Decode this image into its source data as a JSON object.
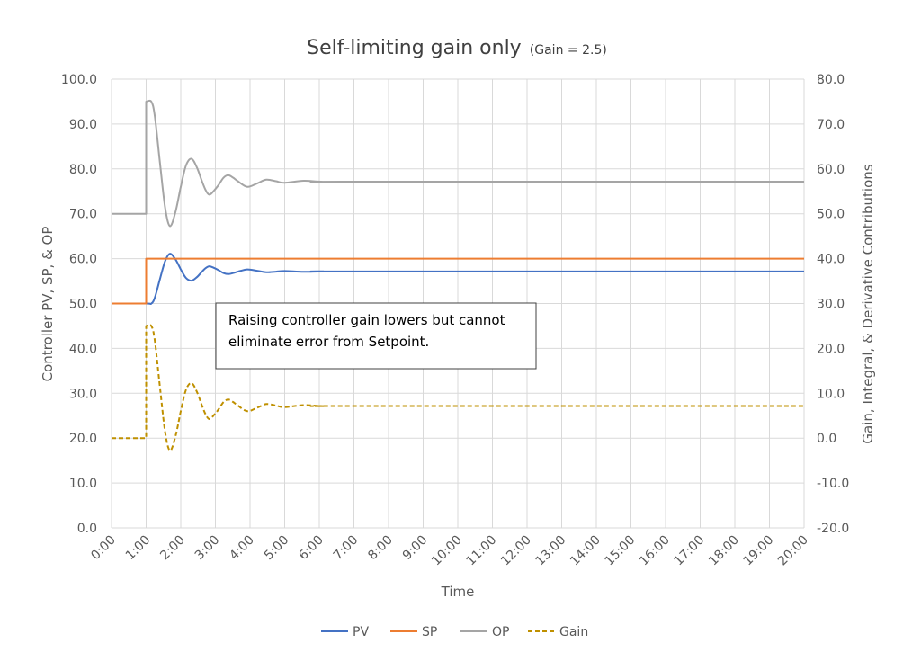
{
  "chart_data": {
    "type": "line",
    "title": "Self-limiting gain only",
    "subtitle": "(Gain = 2.5)",
    "xlabel": "Time",
    "ylabel": "Controller PV, SP, & OP",
    "y2label": "Gain, Integral, & Derivative Contributions",
    "xlim_minutes": [
      0,
      20
    ],
    "ylim": [
      0,
      100
    ],
    "y2lim": [
      -20,
      80
    ],
    "x_ticks": [
      "0:00",
      "1:00",
      "2:00",
      "3:00",
      "4:00",
      "5:00",
      "6:00",
      "7:00",
      "8:00",
      "9:00",
      "10:00",
      "11:00",
      "12:00",
      "13:00",
      "14:00",
      "15:00",
      "16:00",
      "17:00",
      "18:00",
      "19:00",
      "20:00"
    ],
    "y_ticks": [
      "0.0",
      "10.0",
      "20.0",
      "30.0",
      "40.0",
      "50.0",
      "60.0",
      "70.0",
      "80.0",
      "90.0",
      "100.0"
    ],
    "y2_ticks": [
      "-20.0",
      "-10.0",
      "0.0",
      "10.0",
      "20.0",
      "30.0",
      "40.0",
      "50.0",
      "60.0",
      "70.0",
      "80.0"
    ],
    "grid": true,
    "legend_position": "bottom",
    "annotation": "Raising controller gain lowers but cannot eliminate error from Setpoint.",
    "series": [
      {
        "name": "PV",
        "color": "#4472C4",
        "axis": "left",
        "dashed": false,
        "points": [
          [
            0,
            50
          ],
          [
            1,
            50
          ],
          [
            1.15,
            50
          ],
          [
            1.25,
            51.3
          ],
          [
            1.4,
            55.5
          ],
          [
            1.55,
            59.5
          ],
          [
            1.69,
            61.1
          ],
          [
            1.85,
            59.8
          ],
          [
            2.0,
            57.6
          ],
          [
            2.15,
            55.7
          ],
          [
            2.31,
            55.1
          ],
          [
            2.47,
            55.9
          ],
          [
            2.6,
            57.0
          ],
          [
            2.72,
            57.9
          ],
          [
            2.83,
            58.3
          ],
          [
            2.97,
            57.9
          ],
          [
            3.1,
            57.4
          ],
          [
            3.23,
            56.8
          ],
          [
            3.37,
            56.56
          ],
          [
            3.52,
            56.8
          ],
          [
            3.65,
            57.1
          ],
          [
            3.92,
            57.6
          ],
          [
            4.2,
            57.3
          ],
          [
            4.47,
            56.96
          ],
          [
            4.75,
            57.1
          ],
          [
            5.0,
            57.24
          ],
          [
            5.55,
            57.06
          ],
          [
            6.1,
            57.15
          ],
          [
            7,
            57.14
          ],
          [
            20,
            57.14
          ]
        ]
      },
      {
        "name": "SP",
        "color": "#ED7D31",
        "axis": "left",
        "dashed": false,
        "points": [
          [
            0,
            50
          ],
          [
            1,
            50
          ],
          [
            1,
            60
          ],
          [
            20,
            60
          ]
        ]
      },
      {
        "name": "OP",
        "color": "#A5A5A5",
        "axis": "left",
        "dashed": false,
        "points": [
          [
            0,
            70
          ],
          [
            1,
            70
          ],
          [
            1,
            95
          ],
          [
            1.15,
            95
          ],
          [
            1.25,
            91.75
          ],
          [
            1.4,
            81.25
          ],
          [
            1.55,
            71.25
          ],
          [
            1.69,
            67.25
          ],
          [
            1.85,
            70.5
          ],
          [
            2.0,
            76
          ],
          [
            2.15,
            80.75
          ],
          [
            2.31,
            82.25
          ],
          [
            2.47,
            80.25
          ],
          [
            2.6,
            77.5
          ],
          [
            2.72,
            75.25
          ],
          [
            2.83,
            74.25
          ],
          [
            2.97,
            75.25
          ],
          [
            3.1,
            76.5
          ],
          [
            3.23,
            78
          ],
          [
            3.37,
            78.6
          ],
          [
            3.52,
            78
          ],
          [
            3.65,
            77.25
          ],
          [
            3.92,
            76
          ],
          [
            4.2,
            76.75
          ],
          [
            4.47,
            77.6
          ],
          [
            4.75,
            77.25
          ],
          [
            5.0,
            76.9
          ],
          [
            5.55,
            77.35
          ],
          [
            6.1,
            77.13
          ],
          [
            7,
            77.15
          ],
          [
            20,
            77.15
          ]
        ]
      },
      {
        "name": "Gain",
        "color": "#BF9000",
        "axis": "right",
        "dashed": true,
        "points": [
          [
            0,
            0
          ],
          [
            1,
            0
          ],
          [
            1,
            25
          ],
          [
            1.15,
            25
          ],
          [
            1.25,
            21.75
          ],
          [
            1.4,
            11.25
          ],
          [
            1.55,
            1.25
          ],
          [
            1.69,
            -2.75
          ],
          [
            1.85,
            0.5
          ],
          [
            2.0,
            6
          ],
          [
            2.15,
            10.75
          ],
          [
            2.31,
            12.25
          ],
          [
            2.47,
            10.25
          ],
          [
            2.6,
            7.5
          ],
          [
            2.72,
            5.25
          ],
          [
            2.83,
            4.25
          ],
          [
            2.97,
            5.25
          ],
          [
            3.1,
            6.5
          ],
          [
            3.23,
            8
          ],
          [
            3.37,
            8.6
          ],
          [
            3.52,
            8
          ],
          [
            3.65,
            7.25
          ],
          [
            3.92,
            6
          ],
          [
            4.2,
            6.75
          ],
          [
            4.47,
            7.6
          ],
          [
            4.75,
            7.25
          ],
          [
            5.0,
            6.9
          ],
          [
            5.55,
            7.35
          ],
          [
            6.1,
            7.13
          ],
          [
            7,
            7.15
          ],
          [
            20,
            7.15
          ]
        ]
      }
    ]
  }
}
